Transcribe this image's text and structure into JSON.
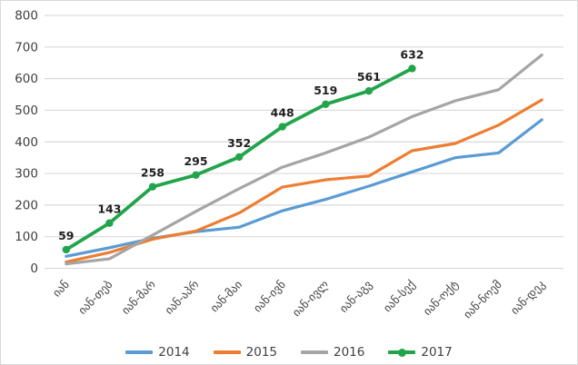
{
  "chart_data": {
    "type": "line",
    "title": "",
    "xlabel": "",
    "ylabel": "",
    "categories": [
      "იან",
      "იან-თებ",
      "იან-მარ",
      "იან-აპრ",
      "იან-მაი",
      "იან-ივნ",
      "იან-ივლ",
      "იან-აგვ",
      "იან-სექ",
      "იან-ოქტ",
      "იან-ნოემ",
      "იან-დეკ"
    ],
    "series": [
      {
        "name": "2014",
        "color": "#5B9BD5",
        "values": [
          38,
          65,
          95,
          116,
          130,
          182,
          218,
          260,
          305,
          350,
          365,
          470
        ],
        "markers": false,
        "data_labels": false
      },
      {
        "name": "2015",
        "color": "#ED7D31",
        "values": [
          20,
          50,
          92,
          118,
          175,
          257,
          280,
          292,
          372,
          395,
          453,
          533
        ],
        "markers": false,
        "data_labels": false
      },
      {
        "name": "2016",
        "color": "#A5A5A5",
        "values": [
          14,
          30,
          105,
          180,
          252,
          320,
          365,
          415,
          480,
          530,
          565,
          675
        ],
        "markers": false,
        "data_labels": false
      },
      {
        "name": "2017",
        "color": "#22A44B",
        "values": [
          59,
          143,
          258,
          295,
          352,
          448,
          519,
          561,
          632
        ],
        "markers": true,
        "data_labels": true
      }
    ],
    "data_label_values": [
      "59",
      "143",
      "258",
      "295",
      "352",
      "448",
      "519",
      "561",
      "632"
    ],
    "ylim": [
      0,
      800
    ],
    "ytick_step": 100,
    "y_ticks": [
      "0",
      "100",
      "200",
      "300",
      "400",
      "500",
      "600",
      "700",
      "800"
    ],
    "grid": true,
    "legend_position": "bottom",
    "colors": {
      "grid": "#D9D9D9",
      "border": "#D9D9D9",
      "axis_text": "#404040",
      "data_label_text": "#1F1F1F",
      "background": "#FFFFFF"
    }
  }
}
